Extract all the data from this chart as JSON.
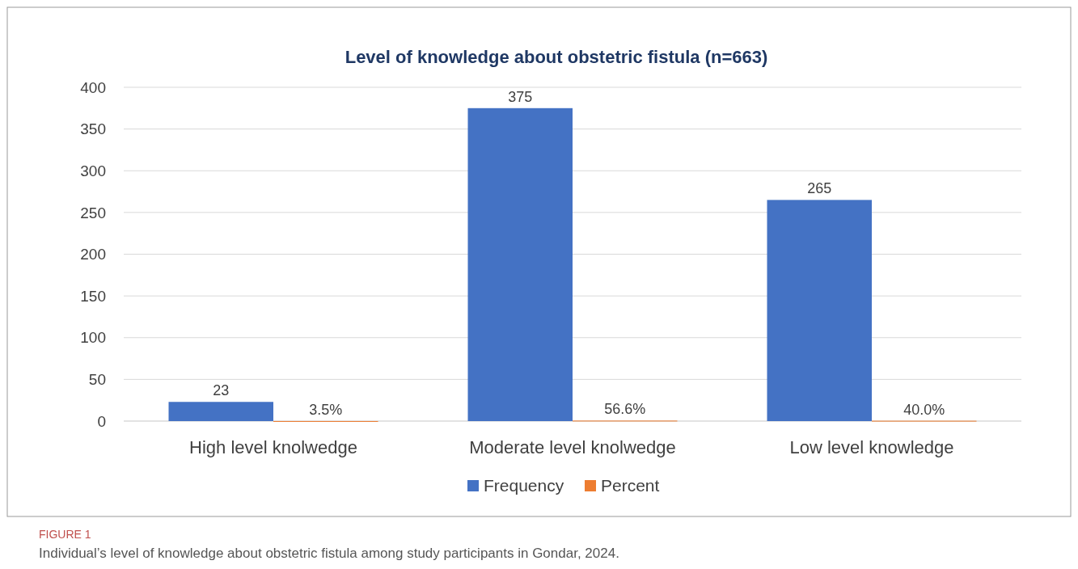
{
  "chart_data": {
    "type": "bar",
    "title": "Level of knowledge about obstetric fistula (n=663)",
    "categories": [
      "High level knolwedge",
      "Moderate level knolwedge",
      "Low level knowledge"
    ],
    "series": [
      {
        "name": "Frequency",
        "color": "#4472c4",
        "values": [
          23,
          375,
          265
        ],
        "value_labels": [
          "23",
          "375",
          "265"
        ]
      },
      {
        "name": "Percent",
        "color": "#ed7d31",
        "values": [
          0.035,
          0.566,
          0.4
        ],
        "value_labels": [
          "3.5%",
          "56.6%",
          "40.0%"
        ]
      }
    ],
    "ylim": [
      0,
      400
    ],
    "yticks": [
      0,
      50,
      100,
      150,
      200,
      250,
      300,
      350,
      400
    ],
    "grid": "y",
    "legend": "bottom",
    "annotations": [
      "FIGURE 1",
      "Individual’s level of knowledge about obstetric fistula among study participants in Gondar, 2024."
    ]
  }
}
